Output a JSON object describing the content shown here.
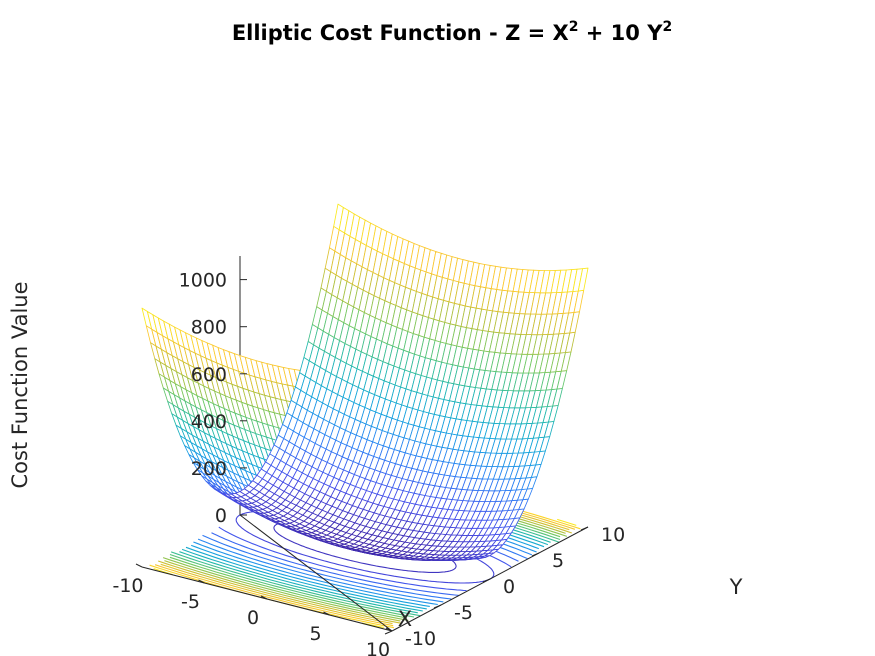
{
  "chart_data": {
    "type": "surface",
    "title": "Elliptic Cost Function - Z = X",
    "title_sup1": "2",
    "title_mid": " + 10 Y",
    "title_sup2": "2",
    "formula": "Z = X^2 + 10 Y^2",
    "xlabel": "X",
    "ylabel": "Y",
    "zlabel": "Cost Function Value",
    "xlim": [
      -10,
      10
    ],
    "ylim": [
      -10,
      10
    ],
    "zlim": [
      0,
      1100
    ],
    "xticks": [
      "-10",
      "-5",
      "0",
      "5",
      "10"
    ],
    "yticks": [
      "-10",
      "-5",
      "0",
      "5",
      "10"
    ],
    "zticks": [
      "0",
      "200",
      "400",
      "600",
      "800",
      "1000"
    ],
    "xtick_values": [
      -10,
      -5,
      0,
      5,
      10
    ],
    "ytick_values": [
      -10,
      -5,
      0,
      5,
      10
    ],
    "ztick_values": [
      0,
      200,
      400,
      600,
      800,
      1000
    ],
    "grid": false,
    "colormap": "parula",
    "contour_levels": [
      50,
      100,
      150,
      200,
      250,
      300,
      350,
      400,
      450,
      500,
      550,
      600,
      650,
      700,
      750,
      800,
      850,
      900,
      950,
      1000,
      1050
    ],
    "colors": {
      "parula_low": "#3e26a8",
      "parula_mid": "#23b5aa",
      "parula_high": "#f9fb15"
    }
  }
}
